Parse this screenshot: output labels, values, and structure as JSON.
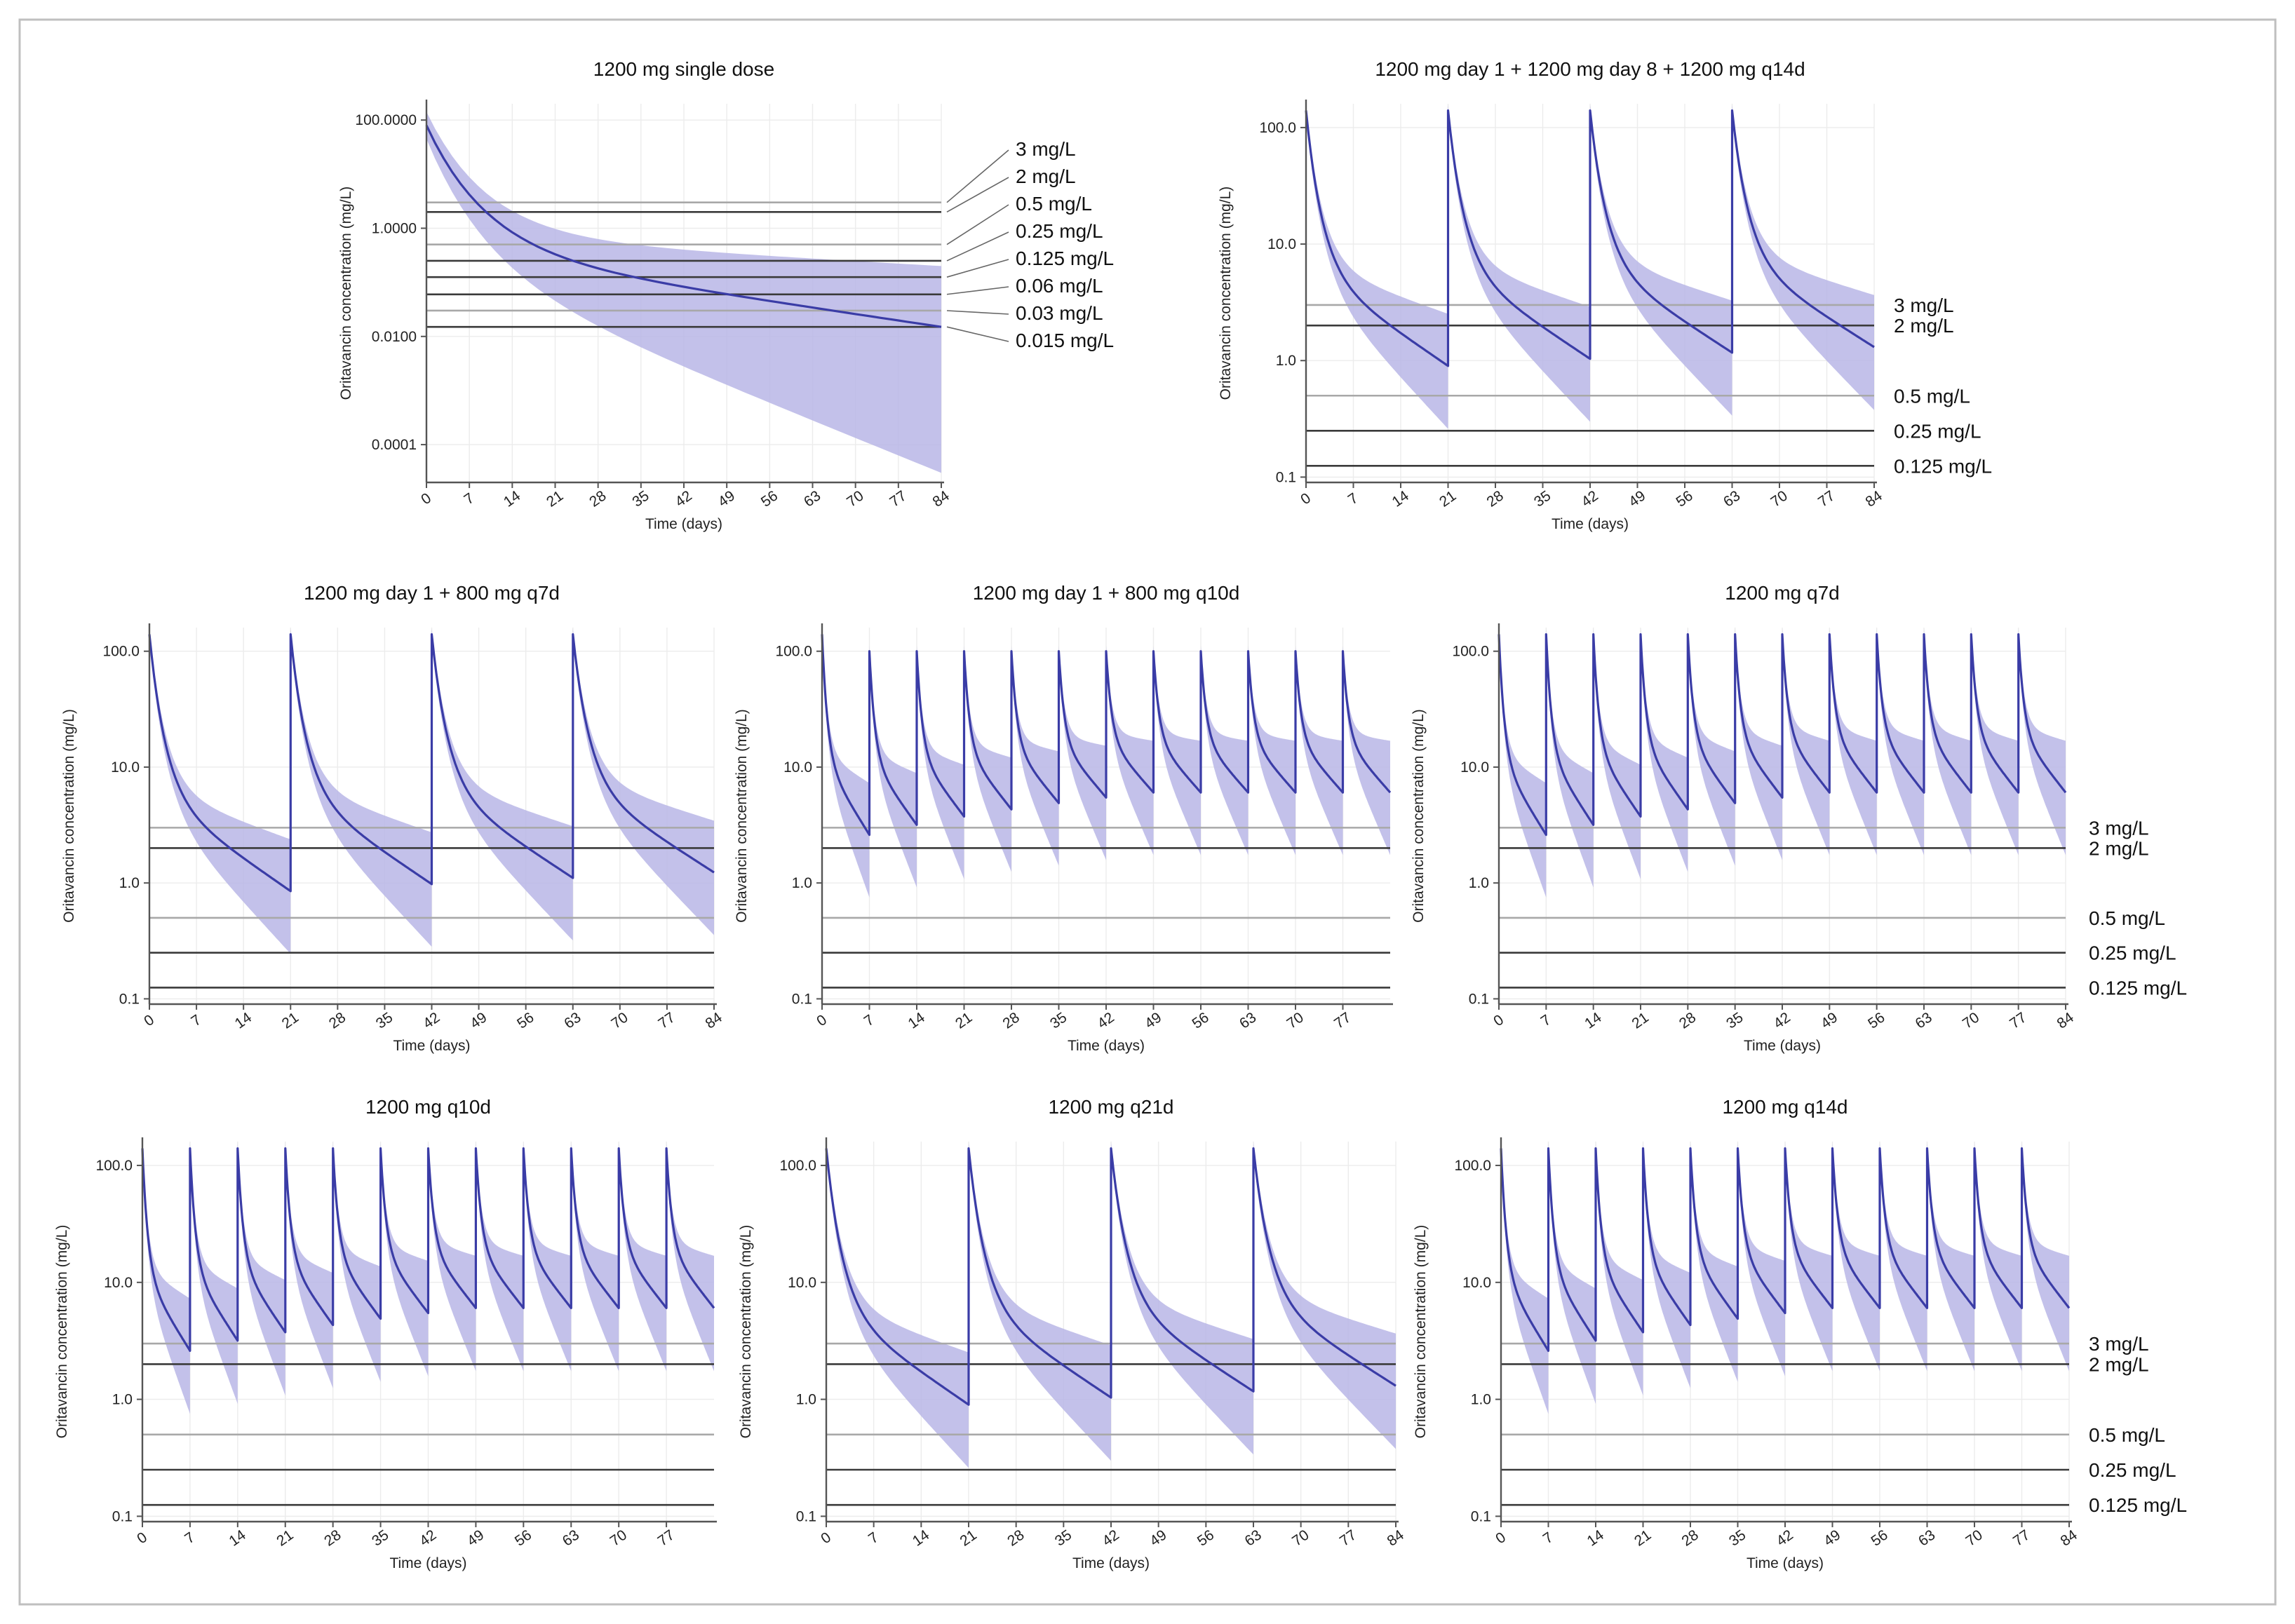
{
  "chart_data": [
    {
      "type": "line",
      "title": "1200 mg single dose",
      "xlabel": "Time (days)",
      "ylabel": "Oritavancin concentration (mg/L)",
      "xlim": [
        0,
        84
      ],
      "x_ticks": [
        "0",
        "7",
        "14",
        "21",
        "28",
        "35",
        "42",
        "49",
        "56",
        "63",
        "70",
        "77",
        "84"
      ],
      "y_scale": "log",
      "ylim": [
        2e-05,
        200
      ],
      "y_ticks": [
        100,
        1,
        0.01,
        0.0001
      ],
      "y_tick_labels": [
        "100.0000",
        "1.0000",
        "0.0100",
        "0.0001"
      ],
      "regimen": {
        "loading_day": 0,
        "loading_peak": 80,
        "doses": [],
        "dose_peak": 80
      },
      "median_end": 0.015,
      "lower_end": 3e-05,
      "upper_end": 0.2,
      "thresholds": [
        {
          "value": 3,
          "label": "3 mg/L"
        },
        {
          "value": 2,
          "label": "2 mg/L"
        },
        {
          "value": 0.5,
          "label": "0.5 mg/L"
        },
        {
          "value": 0.25,
          "label": "0.25 mg/L"
        },
        {
          "value": 0.125,
          "label": "0.125 mg/L"
        },
        {
          "value": 0.06,
          "label": "0.06 mg/L"
        },
        {
          "value": 0.03,
          "label": "0.03 mg/L"
        },
        {
          "value": 0.015,
          "label": "0.015 mg/L"
        }
      ]
    },
    {
      "type": "line",
      "title": "1200 mg day 1 + 1200 mg day 8 + 1200 mg q14d",
      "xlabel": "Time (days)",
      "ylabel": "Oritavancin concentration (mg/L)",
      "xlim": [
        0,
        84
      ],
      "x_ticks": [
        "0",
        "7",
        "14",
        "21",
        "28",
        "35",
        "42",
        "49",
        "56",
        "63",
        "70",
        "77",
        "84"
      ],
      "y_scale": "log",
      "ylim": [
        0.09,
        160
      ],
      "y_ticks": [
        100,
        10,
        1,
        0.1
      ],
      "y_tick_labels": [
        "100.0",
        "10.0",
        "1.0",
        "0.1"
      ],
      "regimen": {
        "loading_day": 0,
        "loading_peak": 140,
        "doses": [
          21,
          42,
          63
        ],
        "dose_peak": 140
      },
      "trough": 0.9,
      "thresholds": [
        {
          "value": 3,
          "label": "3 mg/L"
        },
        {
          "value": 2,
          "label": "2 mg/L"
        },
        {
          "value": 0.5,
          "label": "0.5 mg/L"
        },
        {
          "value": 0.25,
          "label": "0.25 mg/L"
        },
        {
          "value": 0.125,
          "label": "0.125 mg/L"
        }
      ]
    },
    {
      "type": "line",
      "title": "1200 mg day 1 + 800 mg q7d",
      "xlabel": "Time (days)",
      "ylabel": "Oritavancin concentration (mg/L)",
      "xlim": [
        0,
        84
      ],
      "x_ticks": [
        "0",
        "7",
        "14",
        "21",
        "28",
        "35",
        "42",
        "49",
        "56",
        "63",
        "70",
        "77",
        "84"
      ],
      "y_scale": "log",
      "ylim": [
        0.09,
        160
      ],
      "y_ticks": [
        100,
        10,
        1,
        0.1
      ],
      "y_tick_labels": [
        "100.0",
        "10.0",
        "1.0",
        "0.1"
      ],
      "regimen": {
        "loading_day": 0,
        "loading_peak": 140,
        "doses": [
          21,
          42,
          63
        ],
        "dose_peak": 140
      },
      "trough": 0.85,
      "thresholds": [
        {
          "value": 3,
          "label": ""
        },
        {
          "value": 2,
          "label": ""
        },
        {
          "value": 0.5,
          "label": ""
        },
        {
          "value": 0.25,
          "label": ""
        },
        {
          "value": 0.125,
          "label": ""
        }
      ]
    },
    {
      "type": "line",
      "title": "1200 mg day 1 + 800 mg q10d",
      "xlabel": "Time (days)",
      "ylabel": "Oritavancin concentration (mg/L)",
      "xlim": [
        0,
        84
      ],
      "x_ticks": [
        "0",
        "7",
        "14",
        "21",
        "28",
        "35",
        "42",
        "49",
        "56",
        "63",
        "70",
        "77"
      ],
      "y_scale": "log",
      "ylim": [
        0.09,
        160
      ],
      "y_ticks": [
        100,
        10,
        1,
        0.1
      ],
      "y_tick_labels": [
        "100.0",
        "10.0",
        "1.0",
        "0.1"
      ],
      "regimen": {
        "loading_day": 0,
        "loading_peak": 140,
        "doses": [
          7,
          14,
          21,
          28,
          35,
          42,
          49,
          56,
          63,
          70,
          77
        ],
        "dose_peak": 100
      },
      "trough": 2.6,
      "thresholds": [
        {
          "value": 3,
          "label": ""
        },
        {
          "value": 2,
          "label": ""
        },
        {
          "value": 0.5,
          "label": ""
        },
        {
          "value": 0.25,
          "label": ""
        },
        {
          "value": 0.125,
          "label": ""
        }
      ]
    },
    {
      "type": "line",
      "title": "1200 mg q7d",
      "xlabel": "Time (days)",
      "ylabel": "Oritavancin concentration (mg/L)",
      "xlim": [
        0,
        84
      ],
      "x_ticks": [
        "0",
        "7",
        "14",
        "21",
        "28",
        "35",
        "42",
        "49",
        "56",
        "63",
        "70",
        "77",
        "84"
      ],
      "y_scale": "log",
      "ylim": [
        0.09,
        160
      ],
      "y_ticks": [
        100,
        10,
        1,
        0.1
      ],
      "y_tick_labels": [
        "100.0",
        "10.0",
        "1.0",
        "0.1"
      ],
      "regimen": {
        "loading_day": 0,
        "loading_peak": 140,
        "doses": [
          7,
          14,
          21,
          28,
          35,
          42,
          49,
          56,
          63,
          70,
          77
        ],
        "dose_peak": 140
      },
      "trough": 2.6,
      "thresholds": [
        {
          "value": 3,
          "label": "3 mg/L"
        },
        {
          "value": 2,
          "label": "2 mg/L"
        },
        {
          "value": 0.5,
          "label": "0.5 mg/L"
        },
        {
          "value": 0.25,
          "label": "0.25 mg/L"
        },
        {
          "value": 0.125,
          "label": "0.125 mg/L"
        }
      ]
    },
    {
      "type": "line",
      "title": "1200 mg q10d",
      "xlabel": "Time (days)",
      "ylabel": "Oritavancin concentration (mg/L)",
      "xlim": [
        0,
        84
      ],
      "x_ticks": [
        "0",
        "7",
        "14",
        "21",
        "28",
        "35",
        "42",
        "49",
        "56",
        "63",
        "70",
        "77"
      ],
      "y_scale": "log",
      "ylim": [
        0.09,
        160
      ],
      "y_ticks": [
        100,
        10,
        1,
        0.1
      ],
      "y_tick_labels": [
        "100.0",
        "10.0",
        "1.0",
        "0.1"
      ],
      "regimen": {
        "loading_day": 0,
        "loading_peak": 140,
        "doses": [
          7,
          14,
          21,
          28,
          35,
          42,
          49,
          56,
          63,
          70,
          77
        ],
        "dose_peak": 140
      },
      "trough": 2.6,
      "thresholds": [
        {
          "value": 3,
          "label": ""
        },
        {
          "value": 2,
          "label": ""
        },
        {
          "value": 0.5,
          "label": ""
        },
        {
          "value": 0.25,
          "label": ""
        },
        {
          "value": 0.125,
          "label": ""
        }
      ]
    },
    {
      "type": "line",
      "title": "1200 mg q21d",
      "xlabel": "Time (days)",
      "ylabel": "Oritavancin concentration (mg/L)",
      "xlim": [
        0,
        84
      ],
      "x_ticks": [
        "0",
        "7",
        "14",
        "21",
        "28",
        "35",
        "42",
        "49",
        "56",
        "63",
        "70",
        "77",
        "84"
      ],
      "y_scale": "log",
      "ylim": [
        0.09,
        160
      ],
      "y_ticks": [
        100,
        10,
        1,
        0.1
      ],
      "y_tick_labels": [
        "100.0",
        "10.0",
        "1.0",
        "0.1"
      ],
      "regimen": {
        "loading_day": 0,
        "loading_peak": 140,
        "doses": [
          21,
          42,
          63
        ],
        "dose_peak": 140
      },
      "trough": 0.9,
      "thresholds": [
        {
          "value": 3,
          "label": ""
        },
        {
          "value": 2,
          "label": ""
        },
        {
          "value": 0.5,
          "label": ""
        },
        {
          "value": 0.25,
          "label": ""
        },
        {
          "value": 0.125,
          "label": ""
        }
      ]
    },
    {
      "type": "line",
      "title": "1200 mg q14d",
      "xlabel": "Time (days)",
      "ylabel": "Oritavancin concentration (mg/L)",
      "xlim": [
        0,
        84
      ],
      "x_ticks": [
        "0",
        "7",
        "14",
        "21",
        "28",
        "35",
        "42",
        "49",
        "56",
        "63",
        "70",
        "77",
        "84"
      ],
      "y_scale": "log",
      "ylim": [
        0.09,
        160
      ],
      "y_ticks": [
        100,
        10,
        1,
        0.1
      ],
      "y_tick_labels": [
        "100.0",
        "10.0",
        "1.0",
        "0.1"
      ],
      "regimen": {
        "loading_day": 0,
        "loading_peak": 140,
        "doses": [
          7,
          14,
          21,
          28,
          35,
          42,
          49,
          56,
          63,
          70,
          77
        ],
        "dose_peak": 140
      },
      "trough": 2.6,
      "thresholds": [
        {
          "value": 3,
          "label": "3 mg/L"
        },
        {
          "value": 2,
          "label": "2 mg/L"
        },
        {
          "value": 0.5,
          "label": "0.5 mg/L"
        },
        {
          "value": 0.25,
          "label": "0.25 mg/L"
        },
        {
          "value": 0.125,
          "label": "0.125 mg/L"
        }
      ]
    }
  ],
  "colors": {
    "median": "#3a3ca6",
    "band": "#b9b6e6",
    "threshold_dark": "#3a3a3a",
    "threshold_light": "#a8a8a8",
    "axis": "#555555"
  }
}
